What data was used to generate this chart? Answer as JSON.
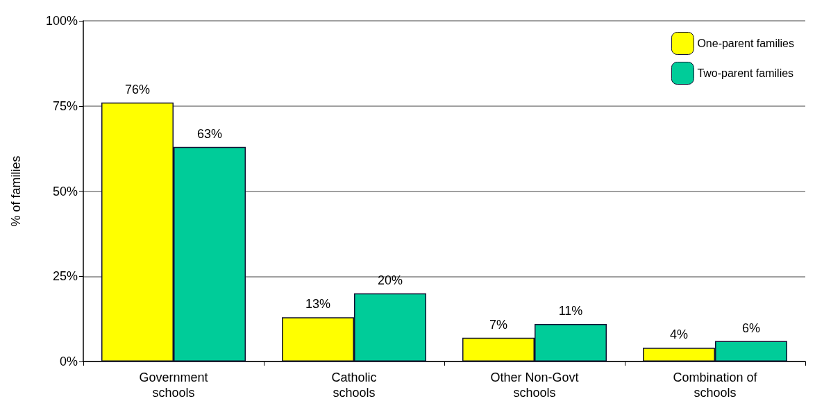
{
  "chart_data": {
    "type": "bar",
    "ylabel": "% of families",
    "categories": [
      "Government\nschools",
      "Catholic\nschools",
      "Other Non-Govt\nschools",
      "Combination of\nschools"
    ],
    "series": [
      {
        "name": "One-parent families",
        "color": "#ffff00",
        "values": [
          76,
          13,
          7,
          4
        ],
        "value_labels": [
          "76%",
          "13%",
          "7%",
          "4%"
        ]
      },
      {
        "name": "Two-parent families",
        "color": "#00cc99",
        "values": [
          63,
          20,
          11,
          6
        ],
        "value_labels": [
          "63%",
          "20%",
          "11%",
          "6%"
        ]
      }
    ],
    "ylim": [
      0,
      100
    ],
    "yticks": [
      {
        "value": 0,
        "label": "0%"
      },
      {
        "value": 25,
        "label": "25%"
      },
      {
        "value": 50,
        "label": "50%"
      },
      {
        "value": 75,
        "label": "75%"
      },
      {
        "value": 100,
        "label": "100%"
      }
    ],
    "grid": "y",
    "legend": "top right"
  }
}
